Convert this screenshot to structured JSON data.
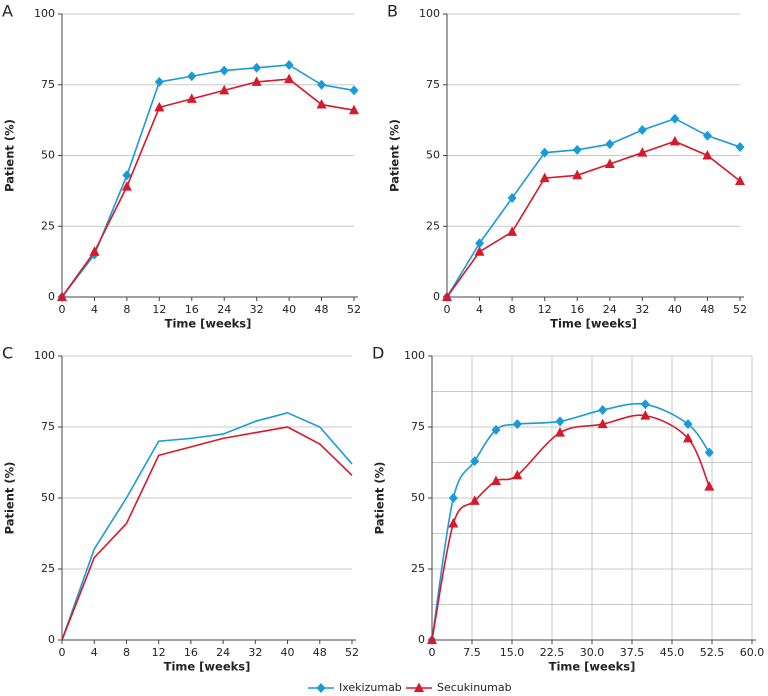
{
  "chart_data": [
    {
      "type": "line",
      "label": "A",
      "xlabel": "Time [weeks]",
      "ylabel": "Patient (%)",
      "grid": "y",
      "markers": true,
      "smooth": false,
      "categories": [
        "0",
        "4",
        "8",
        "12",
        "16",
        "24",
        "32",
        "40",
        "48",
        "52"
      ],
      "ylim": [
        0,
        100
      ],
      "yticks": [
        0,
        25,
        50,
        75,
        100
      ],
      "series": [
        {
          "name": "Ixekizumab",
          "color": "#1a9bd7",
          "marker": "diamond",
          "values": [
            0,
            15,
            43,
            76,
            78,
            80,
            81,
            82,
            75,
            73
          ]
        },
        {
          "name": "Secukinumab",
          "color": "#d7192a",
          "marker": "triangle",
          "values": [
            0,
            16,
            39,
            67,
            70,
            73,
            76,
            77,
            68,
            66
          ]
        }
      ]
    },
    {
      "type": "line",
      "label": "B",
      "xlabel": "Time [weeks]",
      "ylabel": "Patient (%)",
      "grid": "y",
      "markers": true,
      "smooth": false,
      "categories": [
        "0",
        "4",
        "8",
        "12",
        "16",
        "24",
        "32",
        "40",
        "48",
        "52"
      ],
      "ylim": [
        0,
        100
      ],
      "yticks": [
        0,
        25,
        50,
        75,
        100
      ],
      "series": [
        {
          "name": "Ixekizumab",
          "color": "#1a9bd7",
          "marker": "diamond",
          "values": [
            0,
            19,
            35,
            51,
            52,
            54,
            59,
            63,
            57,
            53
          ]
        },
        {
          "name": "Secukinumab",
          "color": "#d7192a",
          "marker": "triangle",
          "values": [
            0,
            16,
            23,
            42,
            43,
            47,
            51,
            55,
            50,
            41
          ]
        }
      ]
    },
    {
      "type": "line",
      "label": "C",
      "xlabel": "Time [weeks]",
      "ylabel": "Patient (%)",
      "grid": "y",
      "markers": false,
      "smooth": false,
      "categories": [
        "0",
        "4",
        "8",
        "12",
        "16",
        "24",
        "32",
        "40",
        "48",
        "52"
      ],
      "ylim": [
        0,
        100
      ],
      "yticks": [
        0,
        25,
        50,
        75,
        100
      ],
      "series": [
        {
          "name": "Ixekizumab",
          "color": "#1a9bd7",
          "values": [
            0,
            32,
            50,
            70,
            71,
            72.5,
            77,
            80,
            75,
            62
          ]
        },
        {
          "name": "Secukinumab",
          "color": "#d7192a",
          "values": [
            0,
            29,
            41,
            65,
            68,
            71,
            73,
            75,
            69,
            58
          ]
        }
      ]
    },
    {
      "type": "line",
      "label": "D",
      "xlabel": "Time [weeks]",
      "ylabel": "Patient (%)",
      "grid": "both",
      "markers": true,
      "smooth": true,
      "x": [
        0,
        4,
        8,
        12,
        16,
        24,
        32,
        40,
        48,
        52
      ],
      "xlim": [
        0,
        60
      ],
      "xticks": [
        0,
        7.5,
        {
          "value": 15,
          "label": "15.0"
        },
        22.5,
        {
          "value": 30,
          "label": "30.0"
        },
        37.5,
        {
          "value": 45,
          "label": "45.0"
        },
        52.5,
        {
          "value": 60,
          "label": "60.0"
        }
      ],
      "ylim": [
        0,
        100
      ],
      "yticks": [
        0,
        25,
        50,
        75,
        100
      ],
      "yminor": [
        12.5,
        37.5,
        62.5,
        87.5
      ],
      "series": [
        {
          "name": "Ixekizumab",
          "color": "#1a9bd7",
          "marker": "diamond",
          "values": [
            0,
            50,
            63,
            74,
            76,
            77,
            81,
            83,
            76,
            66
          ]
        },
        {
          "name": "Secukinumab",
          "color": "#d7192a",
          "marker": "triangle",
          "values": [
            0,
            41,
            49,
            56,
            58,
            73,
            76,
            79,
            71,
            54
          ]
        }
      ]
    }
  ]
}
